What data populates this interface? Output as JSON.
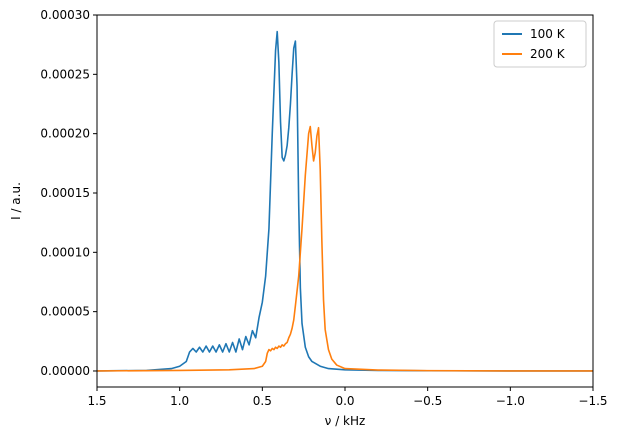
{
  "chart_data": {
    "type": "line",
    "xlabel": "ν / kHz",
    "ylabel": "I / a.u.",
    "xlim": [
      1.5,
      -1.5
    ],
    "ylim": [
      -1.35e-05,
      0.0003
    ],
    "x_inverted": true,
    "x_ticks": [
      1.5,
      1.0,
      0.5,
      0.0,
      -0.5,
      -1.0,
      -1.5
    ],
    "x_tick_labels": [
      "1.5",
      "1.0",
      "0.5",
      "0.0",
      "−0.5",
      "−1.0",
      "−1.5"
    ],
    "y_ticks": [
      0.0,
      5e-05,
      0.0001,
      0.00015,
      0.0002,
      0.00025,
      0.0003
    ],
    "y_tick_labels": [
      "0.00000",
      "0.00005",
      "0.00010",
      "0.00015",
      "0.00020",
      "0.00025",
      "0.00030"
    ],
    "grid": false,
    "legend_position": "top-right",
    "series": [
      {
        "name": "100 K",
        "color": "#1f77b4",
        "x": [
          1.5,
          1.2,
          1.05,
          1.0,
          0.96,
          0.94,
          0.92,
          0.9,
          0.88,
          0.86,
          0.84,
          0.82,
          0.8,
          0.78,
          0.76,
          0.74,
          0.72,
          0.7,
          0.68,
          0.66,
          0.64,
          0.62,
          0.6,
          0.58,
          0.56,
          0.54,
          0.52,
          0.5,
          0.48,
          0.46,
          0.44,
          0.42,
          0.41,
          0.4,
          0.39,
          0.38,
          0.37,
          0.36,
          0.35,
          0.34,
          0.33,
          0.32,
          0.31,
          0.3,
          0.29,
          0.28,
          0.27,
          0.26,
          0.24,
          0.22,
          0.2,
          0.15,
          0.1,
          0.0,
          -0.2,
          -0.5,
          -1.0,
          -1.5
        ],
        "y": [
          0.0,
          5e-07,
          2e-06,
          4e-06,
          8e-06,
          1.6e-05,
          1.9e-05,
          1.6e-05,
          2e-05,
          1.6e-05,
          2.1e-05,
          1.6e-05,
          2.1e-05,
          1.6e-05,
          2.2e-05,
          1.6e-05,
          2.3e-05,
          1.6e-05,
          2.4e-05,
          1.6e-05,
          2.7e-05,
          1.8e-05,
          2.9e-05,
          2.2e-05,
          3.4e-05,
          2.8e-05,
          4.5e-05,
          5.8e-05,
          8e-05,
          0.00012,
          0.0002,
          0.00027,
          0.000286,
          0.00026,
          0.00021,
          0.00018,
          0.000177,
          0.000182,
          0.00019,
          0.000205,
          0.000225,
          0.00025,
          0.000272,
          0.000278,
          0.00024,
          0.00014,
          7e-05,
          4e-05,
          2e-05,
          1.2e-05,
          8e-06,
          4e-06,
          2e-06,
          1e-06,
          5e-07,
          2e-07,
          0.0,
          0.0
        ]
      },
      {
        "name": "200 K",
        "color": "#ff7f0e",
        "x": [
          1.5,
          1.0,
          0.7,
          0.55,
          0.5,
          0.48,
          0.47,
          0.46,
          0.45,
          0.44,
          0.43,
          0.42,
          0.41,
          0.4,
          0.39,
          0.38,
          0.37,
          0.36,
          0.35,
          0.34,
          0.33,
          0.32,
          0.31,
          0.3,
          0.28,
          0.26,
          0.24,
          0.22,
          0.21,
          0.2,
          0.19,
          0.18,
          0.17,
          0.16,
          0.15,
          0.14,
          0.13,
          0.12,
          0.1,
          0.08,
          0.05,
          0.0,
          -0.2,
          -0.5,
          -1.0,
          -1.5
        ],
        "y": [
          0.0,
          5e-07,
          1e-06,
          2e-06,
          4e-06,
          8e-06,
          1.5e-05,
          1.8e-05,
          1.7e-05,
          1.9e-05,
          1.8e-05,
          2e-05,
          1.9e-05,
          2.1e-05,
          2e-05,
          2.2e-05,
          2.1e-05,
          2.3e-05,
          2.4e-05,
          2.8e-05,
          3.1e-05,
          3.6e-05,
          4.3e-05,
          5.5e-05,
          8e-05,
          0.00012,
          0.000165,
          0.0002,
          0.000206,
          0.00019,
          0.000177,
          0.000184,
          0.000198,
          0.000205,
          0.00017,
          0.00011,
          6e-05,
          3.5e-05,
          1.8e-05,
          1e-05,
          5e-06,
          2e-06,
          8e-07,
          3e-07,
          0.0,
          0.0
        ]
      }
    ]
  }
}
